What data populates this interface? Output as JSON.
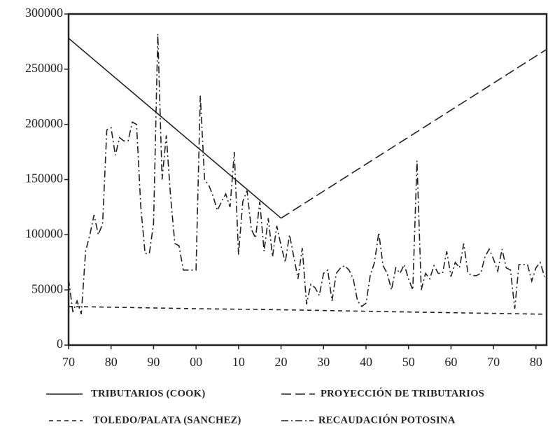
{
  "chart_data": {
    "type": "line",
    "xlim": [
      70,
      182.5
    ],
    "xticks": [
      70,
      80,
      90,
      {
        "value": 100,
        "label": "00"
      },
      {
        "value": 110,
        "label": "10"
      },
      {
        "value": 120,
        "label": "20"
      },
      {
        "value": 130,
        "label": "30"
      },
      {
        "value": 140,
        "label": "40"
      },
      {
        "value": 150,
        "label": "50"
      },
      {
        "value": 160,
        "label": "60"
      },
      {
        "value": 170,
        "label": "70"
      },
      {
        "value": 180,
        "label": "80"
      }
    ],
    "ylim": [
      0,
      300000
    ],
    "yticks": [
      0,
      50000,
      100000,
      150000,
      200000,
      250000,
      300000
    ],
    "series": [
      {
        "name": "TRIBUTARIOS (COOK)",
        "color": "#222",
        "dash": "none",
        "x": [
          70,
          120
        ],
        "values": [
          278000,
          115000
        ]
      },
      {
        "name": "PROYECCIÓN DE TRIBUTARIOS",
        "color": "#222",
        "dash": "14,6",
        "x": [
          120,
          182.5
        ],
        "values": [
          115000,
          268000
        ]
      },
      {
        "name": "TOLEDO/PALATA (SANCHEZ)",
        "color": "#222",
        "dash": "6,5",
        "x": [
          70,
          100,
          120,
          150,
          182.5
        ],
        "values": [
          35000,
          33000,
          32000,
          30000,
          28000
        ]
      },
      {
        "name": "RECAUDACIÓN POTOSINA",
        "color": "#222",
        "dash": "10,4,2,4",
        "x": [
          70,
          71,
          72,
          73,
          74,
          75,
          76,
          77,
          78,
          79,
          80,
          81,
          82,
          83,
          84,
          85,
          86,
          87,
          88,
          89,
          90,
          91,
          92,
          93,
          94,
          95,
          96,
          97,
          98,
          99,
          100,
          101,
          102,
          103,
          104,
          105,
          106,
          107,
          108,
          109,
          110,
          111,
          112,
          113,
          114,
          115,
          116,
          117,
          118,
          119,
          120,
          121,
          122,
          123,
          124,
          125,
          126,
          127,
          128,
          129,
          130,
          131,
          132,
          133,
          134,
          135,
          136,
          137,
          138,
          139,
          140,
          141,
          142,
          143,
          144,
          145,
          146,
          147,
          148,
          149,
          150,
          151,
          152,
          153,
          154,
          155,
          156,
          157,
          158,
          159,
          160,
          161,
          162,
          163,
          164,
          165,
          166,
          167,
          168,
          169,
          170,
          171,
          172,
          173,
          174,
          175,
          176,
          177,
          178,
          179,
          180,
          181,
          182
        ],
        "values": [
          60000,
          30000,
          40000,
          28000,
          85000,
          100000,
          118000,
          100000,
          110000,
          195000,
          197000,
          172000,
          188000,
          185000,
          185000,
          202000,
          200000,
          125000,
          83000,
          83000,
          110000,
          282000,
          150000,
          190000,
          135000,
          92000,
          90000,
          68000,
          68000,
          68000,
          68000,
          226000,
          150000,
          145000,
          135000,
          122000,
          130000,
          137000,
          125000,
          175000,
          82000,
          130000,
          140000,
          105000,
          97000,
          130000,
          85000,
          115000,
          80000,
          108000,
          90000,
          75000,
          100000,
          80000,
          60000,
          88000,
          37000,
          55000,
          52000,
          45000,
          65000,
          68000,
          40000,
          65000,
          70000,
          72000,
          68000,
          60000,
          40000,
          35000,
          38000,
          63000,
          75000,
          102000,
          72000,
          65000,
          50000,
          70000,
          65000,
          73000,
          60000,
          50000,
          167000,
          50000,
          65000,
          60000,
          72000,
          65000,
          65000,
          85000,
          62000,
          75000,
          70000,
          92000,
          65000,
          63000,
          63000,
          65000,
          80000,
          87000,
          78000,
          67000,
          87000,
          70000,
          68000,
          33000,
          73000,
          73000,
          73000,
          58000,
          70000,
          75000,
          62000
        ]
      }
    ]
  }
}
